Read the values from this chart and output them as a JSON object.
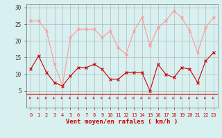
{
  "x": [
    0,
    1,
    2,
    3,
    4,
    5,
    6,
    7,
    8,
    9,
    10,
    11,
    12,
    13,
    14,
    15,
    16,
    17,
    18,
    19,
    20,
    21,
    22,
    23
  ],
  "wind_avg": [
    11.5,
    15.5,
    10.5,
    7.5,
    6.5,
    9.5,
    12.0,
    12.0,
    13.0,
    11.5,
    8.5,
    8.5,
    10.5,
    10.5,
    10.5,
    5.0,
    13.0,
    10.0,
    9.0,
    12.0,
    11.5,
    7.5,
    14.0,
    16.5
  ],
  "wind_gust": [
    26.0,
    26.0,
    23.0,
    13.0,
    6.5,
    21.0,
    23.5,
    23.5,
    23.5,
    21.0,
    23.0,
    18.0,
    16.0,
    23.0,
    27.0,
    18.5,
    24.0,
    26.0,
    29.0,
    27.0,
    23.0,
    16.5,
    24.0,
    27.0
  ],
  "avg_color": "#cc0000",
  "gust_color": "#ff9999",
  "bg_color": "#d8f0f0",
  "grid_color": "#aaaaaa",
  "xlabel": "Vent moyen/en rafales ( km/h )",
  "xlabel_color": "#cc0000",
  "ylim": [
    0,
    31
  ],
  "yticks": [
    5,
    10,
    15,
    20,
    25,
    30
  ],
  "xticks": [
    0,
    1,
    2,
    3,
    4,
    5,
    6,
    7,
    8,
    9,
    10,
    11,
    12,
    13,
    14,
    15,
    16,
    17,
    18,
    19,
    20,
    21,
    22,
    23
  ]
}
